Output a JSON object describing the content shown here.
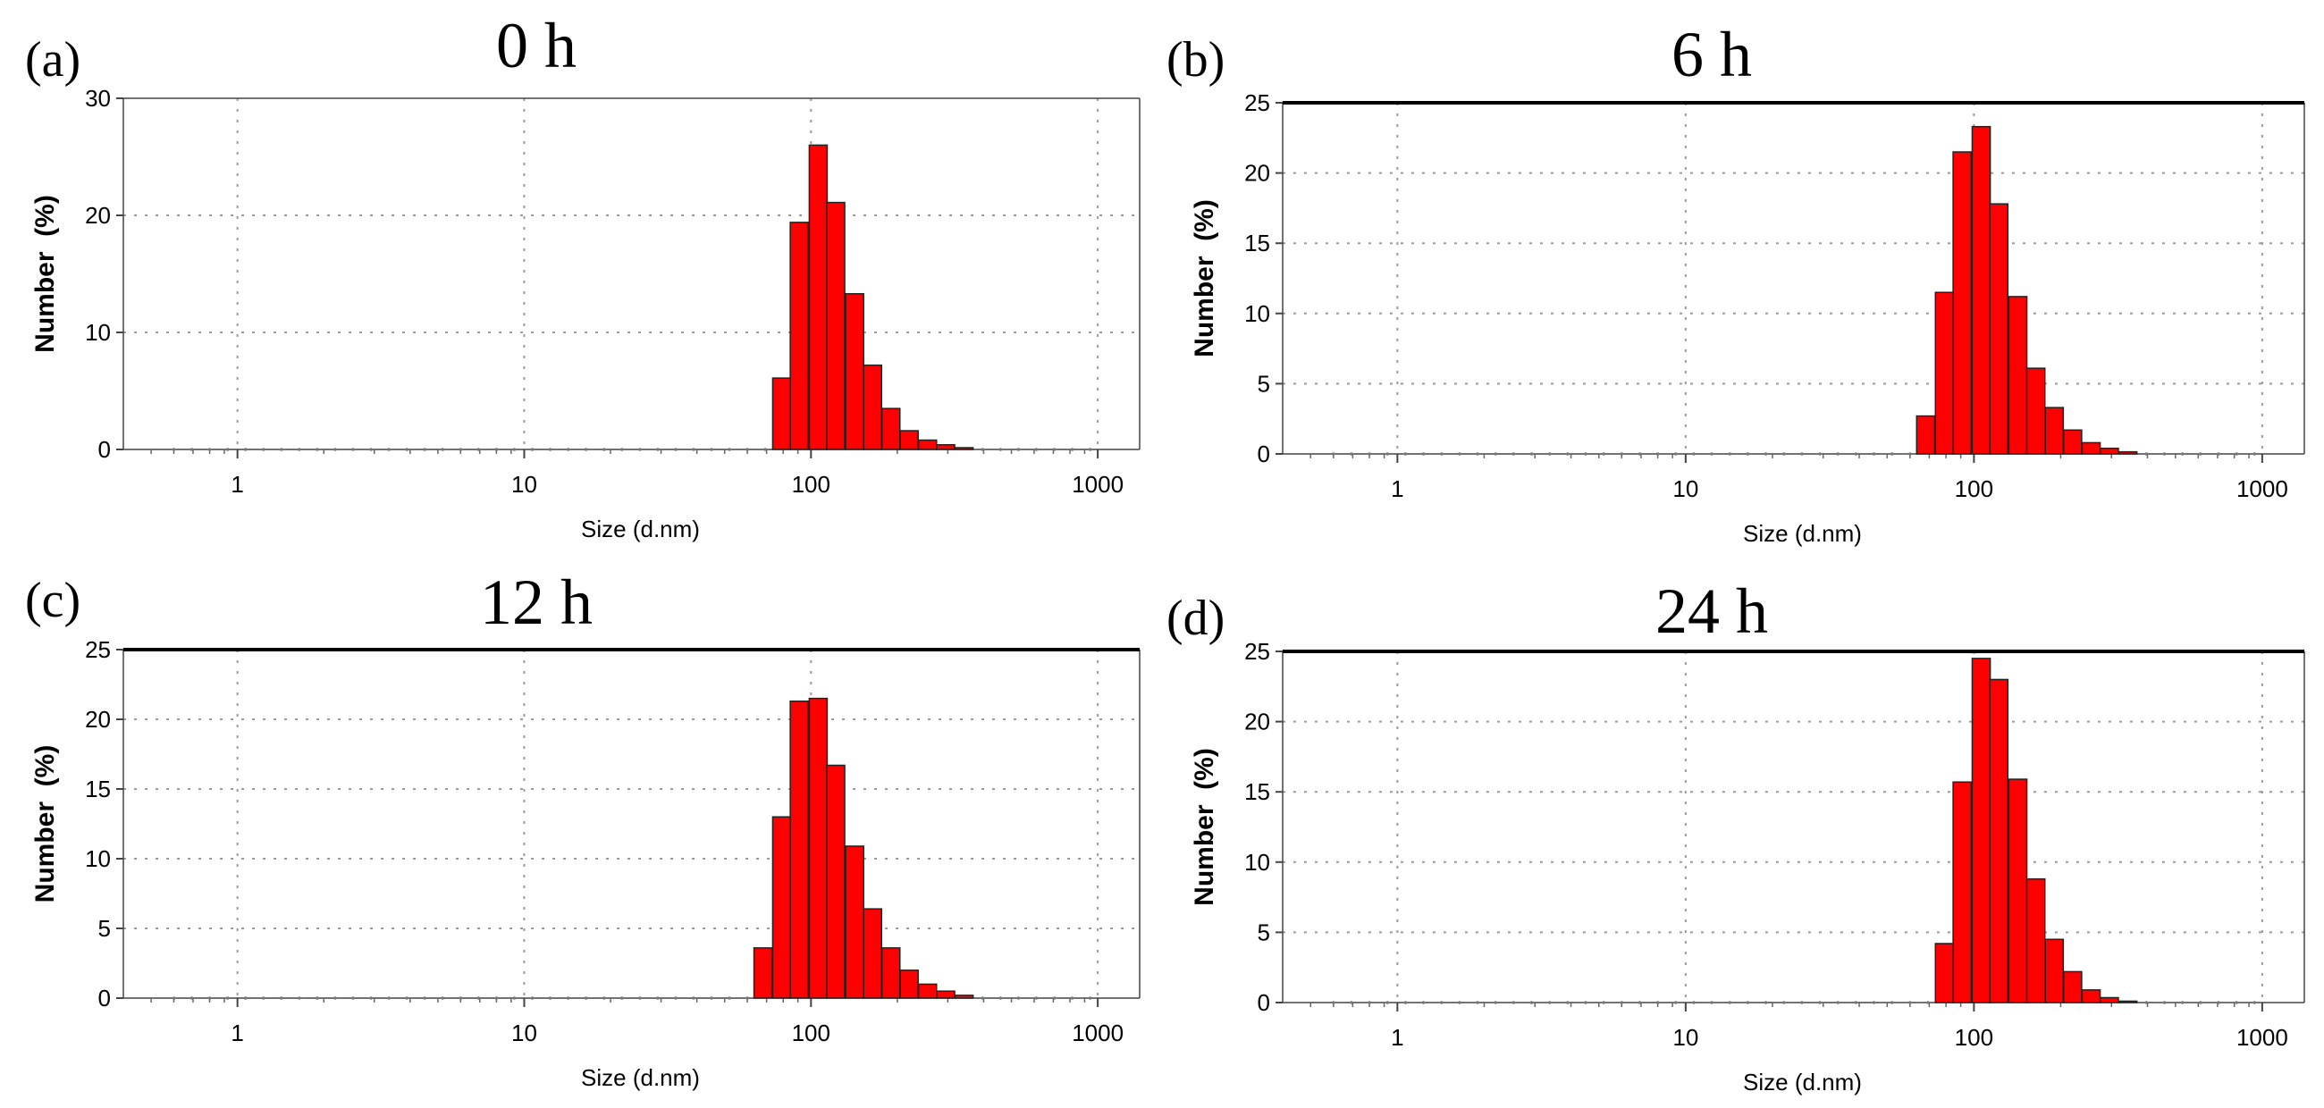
{
  "chart_data": [
    {
      "type": "bar",
      "panel": "(a)",
      "title": "0 h",
      "xlabel": "Size (d.nm)",
      "ylabel": "Number  (%)",
      "xscale": "log",
      "xlim": [
        0.4,
        1400
      ],
      "ylim": [
        0,
        30
      ],
      "yticks": [
        0,
        10,
        20,
        30
      ],
      "xticks": [
        1,
        10,
        100,
        1000
      ],
      "xtick_labels": [
        "1",
        "10",
        "100",
        "1000"
      ],
      "grid": true,
      "bins": [
        {
          "size": 79,
          "value": 6.1
        },
        {
          "size": 91,
          "value": 19.4
        },
        {
          "size": 106,
          "value": 26.0
        },
        {
          "size": 122,
          "value": 21.1
        },
        {
          "size": 142,
          "value": 13.3
        },
        {
          "size": 164,
          "value": 7.2
        },
        {
          "size": 190,
          "value": 3.5
        },
        {
          "size": 220,
          "value": 1.6
        },
        {
          "size": 255,
          "value": 0.8
        },
        {
          "size": 295,
          "value": 0.4
        },
        {
          "size": 342,
          "value": 0.15
        }
      ]
    },
    {
      "type": "bar",
      "panel": "(b)",
      "title": "6 h",
      "xlabel": "Size (d.nm)",
      "ylabel": "Number  (%)",
      "xscale": "log",
      "xlim": [
        0.4,
        1400
      ],
      "ylim": [
        0,
        25
      ],
      "yticks": [
        0,
        5,
        10,
        15,
        20,
        25
      ],
      "xticks": [
        1,
        10,
        100,
        1000
      ],
      "xtick_labels": [
        "1",
        "10",
        "100",
        "1000"
      ],
      "grid": true,
      "bins": [
        {
          "size": 68,
          "value": 2.7
        },
        {
          "size": 79,
          "value": 11.5
        },
        {
          "size": 91,
          "value": 21.5
        },
        {
          "size": 106,
          "value": 23.3
        },
        {
          "size": 122,
          "value": 17.8
        },
        {
          "size": 142,
          "value": 11.2
        },
        {
          "size": 164,
          "value": 6.1
        },
        {
          "size": 190,
          "value": 3.3
        },
        {
          "size": 220,
          "value": 1.7
        },
        {
          "size": 255,
          "value": 0.8
        },
        {
          "size": 295,
          "value": 0.4
        },
        {
          "size": 342,
          "value": 0.15
        }
      ]
    },
    {
      "type": "bar",
      "panel": "(c)",
      "title": "12 h",
      "xlabel": "Size (d.nm)",
      "ylabel": "Number  (%)",
      "xscale": "log",
      "xlim": [
        0.4,
        1400
      ],
      "ylim": [
        0,
        25
      ],
      "yticks": [
        0,
        5,
        10,
        15,
        20,
        25
      ],
      "xticks": [
        1,
        10,
        100,
        1000
      ],
      "xtick_labels": [
        "1",
        "10",
        "100",
        "1000"
      ],
      "grid": true,
      "bins": [
        {
          "size": 68,
          "value": 3.6
        },
        {
          "size": 79,
          "value": 13.0
        },
        {
          "size": 91,
          "value": 21.3
        },
        {
          "size": 106,
          "value": 21.5
        },
        {
          "size": 122,
          "value": 16.7
        },
        {
          "size": 142,
          "value": 10.9
        },
        {
          "size": 164,
          "value": 6.4
        },
        {
          "size": 190,
          "value": 3.6
        },
        {
          "size": 220,
          "value": 2.0
        },
        {
          "size": 255,
          "value": 1.0
        },
        {
          "size": 295,
          "value": 0.5
        },
        {
          "size": 342,
          "value": 0.2
        }
      ]
    },
    {
      "type": "bar",
      "panel": "(d)",
      "title": "24 h",
      "xlabel": "Size (d.nm)",
      "ylabel": "Number  (%)",
      "xscale": "log",
      "xlim": [
        0.4,
        1400
      ],
      "ylim": [
        0,
        25
      ],
      "yticks": [
        0,
        5,
        10,
        15,
        20,
        25
      ],
      "xticks": [
        1,
        10,
        100,
        1000
      ],
      "xtick_labels": [
        "1",
        "10",
        "100",
        "1000"
      ],
      "grid": true,
      "bins": [
        {
          "size": 79,
          "value": 4.2
        },
        {
          "size": 91,
          "value": 15.7
        },
        {
          "size": 106,
          "value": 24.5
        },
        {
          "size": 122,
          "value": 23.0
        },
        {
          "size": 142,
          "value": 15.9
        },
        {
          "size": 164,
          "value": 8.8
        },
        {
          "size": 190,
          "value": 4.5
        },
        {
          "size": 220,
          "value": 2.2
        },
        {
          "size": 255,
          "value": 0.9
        },
        {
          "size": 295,
          "value": 0.35
        },
        {
          "size": 342,
          "value": 0.1
        }
      ]
    }
  ]
}
